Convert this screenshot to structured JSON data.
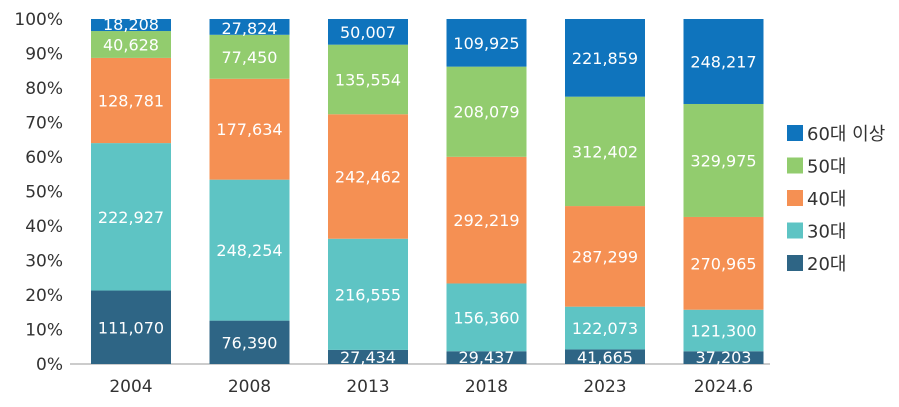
{
  "chart_data": {
    "type": "bar",
    "stacked": true,
    "normalized": true,
    "title": "",
    "xlabel": "",
    "ylabel": "",
    "ylim": [
      0,
      100
    ],
    "yticks": [
      "0%",
      "10%",
      "20%",
      "30%",
      "40%",
      "50%",
      "60%",
      "70%",
      "80%",
      "90%",
      "100%"
    ],
    "categories": [
      "2004",
      "2008",
      "2013",
      "2018",
      "2023",
      "2024.6"
    ],
    "series": [
      {
        "name": "20대",
        "color": "#2e6585",
        "values": [
          111070,
          76390,
          27434,
          29437,
          41665,
          37203
        ],
        "labels": [
          "111,070",
          "76,390",
          "27,434",
          "29,437",
          "41,665",
          "37,203"
        ]
      },
      {
        "name": "30대",
        "color": "#5ec4c4",
        "values": [
          222927,
          248254,
          216555,
          156360,
          122073,
          121300
        ],
        "labels": [
          "222,927",
          "248,254",
          "216,555",
          "156,360",
          "122,073",
          "121,300"
        ]
      },
      {
        "name": "40대",
        "color": "#f59053",
        "values": [
          128781,
          177634,
          242462,
          292219,
          287299,
          270965
        ],
        "labels": [
          "128,781",
          "177,634",
          "242,462",
          "292,219",
          "287,299",
          "270,965"
        ]
      },
      {
        "name": "50대",
        "color": "#92cc6e",
        "values": [
          40628,
          77450,
          135554,
          208079,
          312402,
          329975
        ],
        "labels": [
          "40,628",
          "77,450",
          "135,554",
          "208,079",
          "312,402",
          "329,975"
        ]
      },
      {
        "name": "60대 이상",
        "color": "#0f74bd",
        "values": [
          18208,
          27824,
          50007,
          109925,
          221859,
          248217
        ],
        "labels": [
          "18,208",
          "27,824",
          "50,007",
          "109,925",
          "221,859",
          "248,217"
        ]
      }
    ],
    "legend": {
      "position": "right",
      "order": [
        "60대 이상",
        "50대",
        "40대",
        "30대",
        "20대"
      ]
    },
    "grid": false
  }
}
